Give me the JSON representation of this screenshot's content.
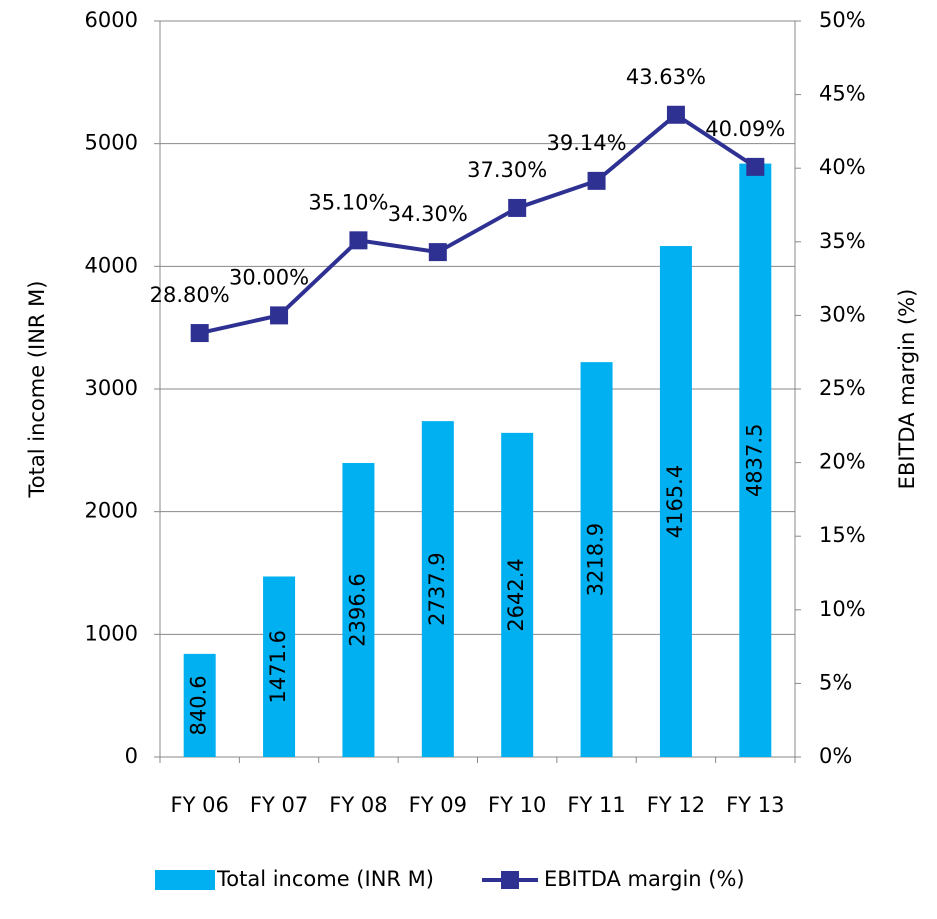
{
  "chart_data": {
    "type": "bar",
    "categories": [
      "FY 06",
      "FY 07",
      "FY 08",
      "FY 09",
      "FY 10",
      "FY 11",
      "FY 12",
      "FY 13"
    ],
    "series": [
      {
        "name": "Total income (INR M)",
        "type": "bar",
        "color": "#00b0f0",
        "values": [
          840.6,
          1471.6,
          2396.6,
          2737.9,
          2642.4,
          3218.9,
          4165.4,
          4837.5
        ]
      },
      {
        "name": "EBITDA margin (%)",
        "type": "line",
        "axis": "y2",
        "color": "#2e3192",
        "values": [
          28.8,
          30.0,
          35.1,
          34.3,
          37.3,
          39.14,
          43.63,
          40.09
        ],
        "value_labels": [
          "28.80%",
          "30.00%",
          "35.10%",
          "34.30%",
          "37.30%",
          "39.14%",
          "43.63%",
          "40.09%"
        ]
      }
    ],
    "ylabel": "Total income (INR M)",
    "y2label": "EBITDA margin (%)",
    "ylim": [
      0,
      6000
    ],
    "yticks": [
      0,
      1000,
      2000,
      3000,
      4000,
      5000,
      6000
    ],
    "y2lim": [
      0,
      50
    ],
    "y2ticks": [
      {
        "value": 0,
        "label": "0%"
      },
      {
        "value": 5,
        "label": "5%"
      },
      {
        "value": 10,
        "label": "10%"
      },
      {
        "value": 15,
        "label": "15%"
      },
      {
        "value": 20,
        "label": "20%"
      },
      {
        "value": 25,
        "label": "25%"
      },
      {
        "value": 30,
        "label": "30%"
      },
      {
        "value": 35,
        "label": "35%"
      },
      {
        "value": 40,
        "label": "40%"
      },
      {
        "value": 45,
        "label": "45%"
      },
      {
        "value": 50,
        "label": "50%"
      }
    ],
    "grid": true,
    "legend": "bottom"
  }
}
